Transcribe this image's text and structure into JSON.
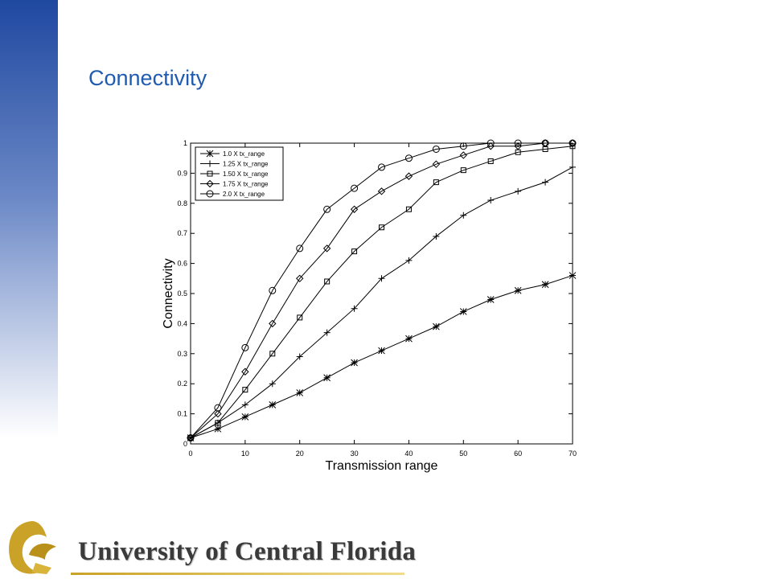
{
  "slide": {
    "title": "Connectivity"
  },
  "chart_data": {
    "type": "line",
    "x_label": "Transmission range",
    "y_label": "Connectivity",
    "x": [
      0,
      5,
      10,
      15,
      20,
      25,
      30,
      35,
      40,
      45,
      50,
      55,
      60,
      65,
      70
    ],
    "series": [
      {
        "name": "1.0 X tx_range",
        "color": "#000000",
        "marker": "star",
        "values": [
          0.02,
          0.05,
          0.09,
          0.13,
          0.17,
          0.22,
          0.27,
          0.31,
          0.35,
          0.39,
          0.44,
          0.48,
          0.51,
          0.53,
          0.56
        ]
      },
      {
        "name": "1.25 X tx_range",
        "color": "#000000",
        "marker": "plus",
        "values": [
          0.02,
          0.07,
          0.13,
          0.2,
          0.29,
          0.37,
          0.45,
          0.55,
          0.61,
          0.69,
          0.76,
          0.81,
          0.84,
          0.87,
          0.92
        ]
      },
      {
        "name": "1.50 X tx_range",
        "color": "#000000",
        "marker": "square",
        "values": [
          0.02,
          0.07,
          0.18,
          0.3,
          0.42,
          0.54,
          0.64,
          0.72,
          0.78,
          0.87,
          0.91,
          0.94,
          0.97,
          0.98,
          0.99
        ]
      },
      {
        "name": "1.75 X tx_range",
        "color": "#000000",
        "marker": "diamond",
        "values": [
          0.02,
          0.1,
          0.24,
          0.4,
          0.55,
          0.65,
          0.78,
          0.84,
          0.89,
          0.93,
          0.96,
          0.99,
          0.99,
          1,
          1
        ]
      },
      {
        "name": "2.0 X tx_range",
        "color": "#000000",
        "marker": "circle",
        "values": [
          0.02,
          0.12,
          0.32,
          0.51,
          0.65,
          0.78,
          0.85,
          0.92,
          0.95,
          0.98,
          0.99,
          1,
          1,
          1,
          1
        ]
      }
    ],
    "xlim": [
      0,
      70
    ],
    "xticks": [
      0,
      10,
      20,
      30,
      40,
      50,
      60,
      70
    ],
    "ylim": [
      0,
      1
    ],
    "yticks": [
      0,
      0.1,
      0.2,
      0.3,
      0.4,
      0.5,
      0.6,
      0.7,
      0.8,
      0.9,
      1
    ],
    "grid": false,
    "legend": "upper-left"
  },
  "footer": {
    "logo_text": "University of Central Florida"
  }
}
